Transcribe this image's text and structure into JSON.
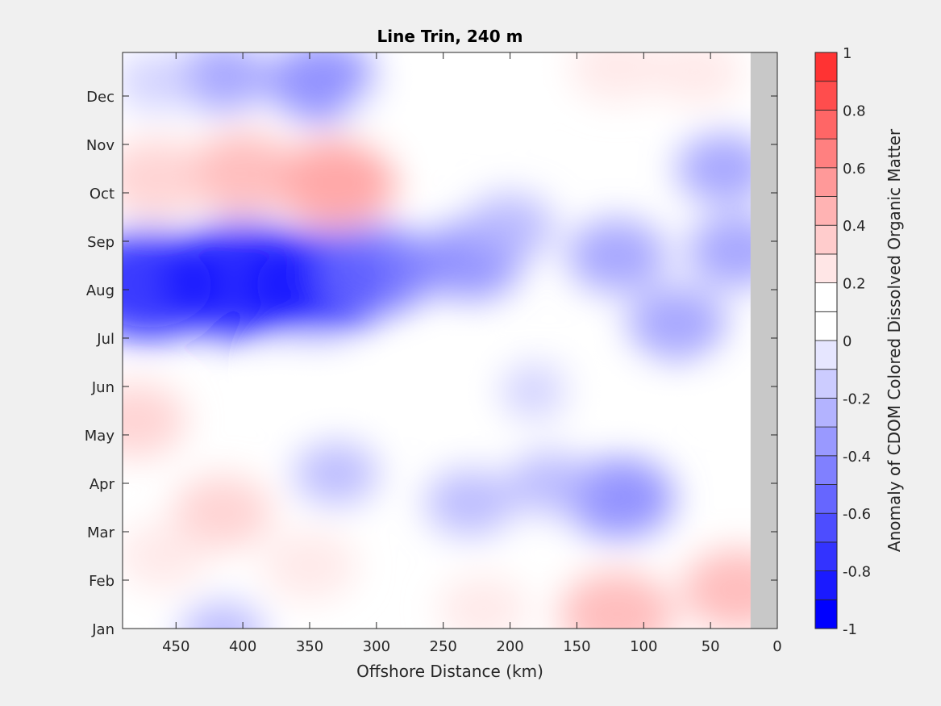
{
  "chart_data": {
    "type": "heatmap",
    "title": "Line Trin, 240 m",
    "xlabel": "Offshore Distance (km)",
    "ylabel": "",
    "xlim": [
      490,
      0
    ],
    "x_reversed": true,
    "x_ticks": [
      "450",
      "400",
      "350",
      "300",
      "250",
      "200",
      "150",
      "100",
      "50",
      "0"
    ],
    "x_tick_values": [
      450,
      400,
      350,
      300,
      250,
      200,
      150,
      100,
      50,
      0
    ],
    "y_ticks": [
      "Jan",
      "Feb",
      "Mar",
      "Apr",
      "May",
      "Jun",
      "Jul",
      "Aug",
      "Sep",
      "Oct",
      "Nov",
      "Dec"
    ],
    "y_tick_values": [
      0,
      1,
      2,
      3,
      4,
      5,
      6,
      7,
      8,
      9,
      10,
      11
    ],
    "ylim": [
      0,
      11.9
    ],
    "land_mask_from_km": 20,
    "colorbar": {
      "label": "Anomaly of CDOM Colored Dissolved Organic Matter",
      "ticks": [
        "1",
        "0.8",
        "0.6",
        "0.4",
        "0.2",
        "0",
        "-0.2",
        "-0.4",
        "-0.6",
        "-0.8",
        "-1"
      ],
      "tick_values": [
        1,
        0.8,
        0.6,
        0.4,
        0.2,
        0,
        -0.2,
        -0.4,
        -0.6,
        -0.8,
        -1
      ],
      "levels": [
        -1,
        -0.9,
        -0.8,
        -0.7,
        -0.6,
        -0.5,
        -0.4,
        -0.3,
        -0.2,
        -0.1,
        0,
        0.1,
        0.2,
        0.3,
        0.4,
        0.5,
        0.6,
        0.7,
        0.8,
        0.9,
        1
      ],
      "colors": [
        "#0000ff",
        "#1a1aff",
        "#3333ff",
        "#4d4dff",
        "#6666ff",
        "#8080ff",
        "#9999ff",
        "#b3b3ff",
        "#ccccff",
        "#e6e6ff",
        "#ffffff",
        "#ffffff",
        "#ffe6e6",
        "#ffcccc",
        "#ffb3b3",
        "#ff9999",
        "#ff8080",
        "#ff6666",
        "#ff4d4d",
        "#ff3333",
        "#ff1a1a"
      ]
    },
    "features": [
      {
        "x": 400,
        "y": 7.2,
        "value": -0.95
      },
      {
        "x": 470,
        "y": 7.1,
        "value": -0.85
      },
      {
        "x": 345,
        "y": 7.1,
        "value": -0.8
      },
      {
        "x": 300,
        "y": 7.4,
        "value": -0.55
      },
      {
        "x": 230,
        "y": 7.6,
        "value": -0.4
      },
      {
        "x": 200,
        "y": 8.3,
        "value": -0.25
      },
      {
        "x": 120,
        "y": 7.7,
        "value": -0.35
      },
      {
        "x": 30,
        "y": 7.8,
        "value": -0.35
      },
      {
        "x": 75,
        "y": 6.3,
        "value": -0.35
      },
      {
        "x": 40,
        "y": 9.5,
        "value": -0.3
      },
      {
        "x": 180,
        "y": 4.9,
        "value": -0.1
      },
      {
        "x": 118,
        "y": 2.7,
        "value": -0.45
      },
      {
        "x": 230,
        "y": 2.6,
        "value": -0.25
      },
      {
        "x": 170,
        "y": 3.0,
        "value": -0.2
      },
      {
        "x": 330,
        "y": 3.2,
        "value": -0.2
      },
      {
        "x": 340,
        "y": 11.3,
        "value": -0.45
      },
      {
        "x": 415,
        "y": 11.4,
        "value": -0.3
      },
      {
        "x": 465,
        "y": 11.3,
        "value": -0.15
      },
      {
        "x": 415,
        "y": -0.1,
        "value": -0.2
      },
      {
        "x": 330,
        "y": 9.2,
        "value": 0.55
      },
      {
        "x": 400,
        "y": 9.4,
        "value": 0.45
      },
      {
        "x": 465,
        "y": 9.3,
        "value": 0.4
      },
      {
        "x": 480,
        "y": 4.3,
        "value": 0.35
      },
      {
        "x": 415,
        "y": 2.4,
        "value": 0.35
      },
      {
        "x": 120,
        "y": 0.3,
        "value": 0.5
      },
      {
        "x": 30,
        "y": 0.8,
        "value": 0.45
      },
      {
        "x": 220,
        "y": 0.4,
        "value": 0.25
      },
      {
        "x": 350,
        "y": 1.3,
        "value": 0.3
      },
      {
        "x": 460,
        "y": 1.5,
        "value": 0.25
      },
      {
        "x": 130,
        "y": 4.9,
        "value": 0.2
      },
      {
        "x": 22,
        "y": 5.0,
        "value": 0.15
      },
      {
        "x": 120,
        "y": 11.6,
        "value": 0.3
      },
      {
        "x": 220,
        "y": 11.2,
        "value": 0.2
      },
      {
        "x": 60,
        "y": 11.5,
        "value": 0.25
      },
      {
        "x": 290,
        "y": 10.6,
        "value": 0.15
      },
      {
        "x": 350,
        "y": 5.3,
        "value": 0.2
      },
      {
        "x": 250,
        "y": 5.2,
        "value": 0.1
      }
    ]
  }
}
